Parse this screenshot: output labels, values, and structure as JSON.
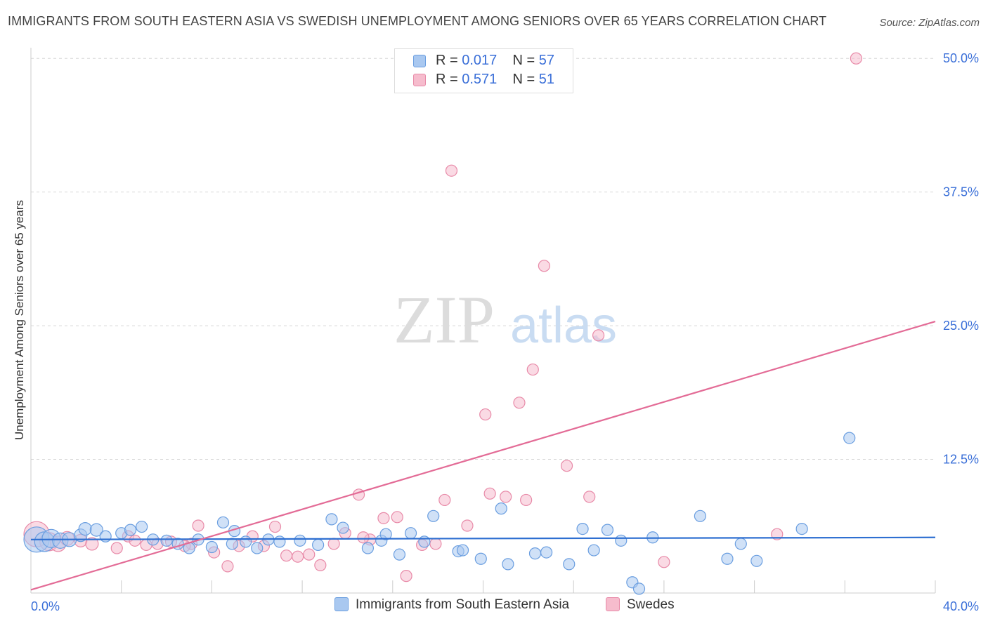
{
  "title": "IMMIGRANTS FROM SOUTH EASTERN ASIA VS SWEDISH UNEMPLOYMENT AMONG SENIORS OVER 65 YEARS CORRELATION CHART",
  "source": "Source: ZipAtlas.com",
  "watermark": {
    "zip": "ZIP",
    "atlas": "atlas"
  },
  "legend": {
    "r_label": "R =",
    "n_label": "N =",
    "series": [
      {
        "r": "0.017",
        "n": "57"
      },
      {
        "r": "0.571",
        "n": "51"
      }
    ]
  },
  "bottom_legend": {
    "series1": "Immigrants from South Eastern Asia",
    "series2": "Swedes"
  },
  "colors": {
    "blue_fill": "#a9c8f0",
    "blue_stroke": "#6a9ee0",
    "blue_line": "#2e6fd1",
    "pink_fill": "#f6bccd",
    "pink_stroke": "#e88aa8",
    "pink_line": "#e36b96",
    "tick_text": "#3a6fd8",
    "grid": "#d6d6d6"
  },
  "chart_data": {
    "type": "scatter",
    "title": "IMMIGRANTS FROM SOUTH EASTERN ASIA VS SWEDISH UNEMPLOYMENT AMONG SENIORS OVER 65 YEARS CORRELATION CHART",
    "xlabel": "",
    "ylabel": "Unemployment Among Seniors over 65 years",
    "xlim": [
      0,
      40
    ],
    "ylim": [
      0,
      51
    ],
    "x_tick_labels": [
      "0.0%",
      "40.0%"
    ],
    "y_ticks": [
      12.5,
      25.0,
      37.5,
      50.0
    ],
    "y_tick_labels": [
      "12.5%",
      "25.0%",
      "37.5%",
      "50.0%"
    ],
    "grid": true,
    "legend_position": "top-center",
    "series": [
      {
        "name": "Immigrants from South Eastern Asia",
        "r": 0.017,
        "n": 57,
        "trend": {
          "x": [
            0,
            40
          ],
          "y": [
            5.0,
            5.2
          ]
        },
        "points": [
          {
            "x": 0.25,
            "y": 5.0,
            "s": 18
          },
          {
            "x": 0.6,
            "y": 4.8,
            "s": 14
          },
          {
            "x": 0.9,
            "y": 5.1,
            "s": 13
          },
          {
            "x": 1.3,
            "y": 4.9,
            "s": 11
          },
          {
            "x": 1.7,
            "y": 5.0,
            "s": 10
          },
          {
            "x": 2.2,
            "y": 5.4,
            "s": 9
          },
          {
            "x": 2.4,
            "y": 6.0,
            "s": 9
          },
          {
            "x": 2.9,
            "y": 5.9,
            "s": 9
          },
          {
            "x": 3.3,
            "y": 5.3,
            "s": 8
          },
          {
            "x": 4.0,
            "y": 5.6,
            "s": 8
          },
          {
            "x": 4.4,
            "y": 5.9,
            "s": 8
          },
          {
            "x": 4.9,
            "y": 6.2,
            "s": 8
          },
          {
            "x": 5.4,
            "y": 5.0,
            "s": 8
          },
          {
            "x": 6.0,
            "y": 4.9,
            "s": 8
          },
          {
            "x": 6.5,
            "y": 4.6,
            "s": 8
          },
          {
            "x": 7.0,
            "y": 4.2,
            "s": 8
          },
          {
            "x": 7.4,
            "y": 5.0,
            "s": 8
          },
          {
            "x": 8.0,
            "y": 4.3,
            "s": 8
          },
          {
            "x": 8.5,
            "y": 6.6,
            "s": 8
          },
          {
            "x": 9.0,
            "y": 5.8,
            "s": 8
          },
          {
            "x": 9.5,
            "y": 4.8,
            "s": 8
          },
          {
            "x": 10.0,
            "y": 4.2,
            "s": 8
          },
          {
            "x": 10.5,
            "y": 5.0,
            "s": 8
          },
          {
            "x": 11.0,
            "y": 4.8,
            "s": 8
          },
          {
            "x": 11.9,
            "y": 4.9,
            "s": 8
          },
          {
            "x": 12.7,
            "y": 4.5,
            "s": 8
          },
          {
            "x": 13.3,
            "y": 6.9,
            "s": 8
          },
          {
            "x": 13.8,
            "y": 6.1,
            "s": 8
          },
          {
            "x": 14.9,
            "y": 4.2,
            "s": 8
          },
          {
            "x": 15.5,
            "y": 4.9,
            "s": 8
          },
          {
            "x": 15.7,
            "y": 5.5,
            "s": 8
          },
          {
            "x": 16.3,
            "y": 3.6,
            "s": 8
          },
          {
            "x": 16.8,
            "y": 5.6,
            "s": 8
          },
          {
            "x": 17.4,
            "y": 4.8,
            "s": 8
          },
          {
            "x": 17.8,
            "y": 7.2,
            "s": 8
          },
          {
            "x": 18.9,
            "y": 3.9,
            "s": 8
          },
          {
            "x": 19.1,
            "y": 4.0,
            "s": 8
          },
          {
            "x": 19.9,
            "y": 3.2,
            "s": 8
          },
          {
            "x": 20.8,
            "y": 7.9,
            "s": 8
          },
          {
            "x": 21.1,
            "y": 2.7,
            "s": 8
          },
          {
            "x": 22.3,
            "y": 3.7,
            "s": 8
          },
          {
            "x": 22.8,
            "y": 3.8,
            "s": 8
          },
          {
            "x": 23.8,
            "y": 2.7,
            "s": 8
          },
          {
            "x": 24.4,
            "y": 6.0,
            "s": 8
          },
          {
            "x": 24.9,
            "y": 4.0,
            "s": 8
          },
          {
            "x": 25.5,
            "y": 5.9,
            "s": 8
          },
          {
            "x": 26.1,
            "y": 4.9,
            "s": 8
          },
          {
            "x": 26.6,
            "y": 1.0,
            "s": 8
          },
          {
            "x": 26.9,
            "y": 0.4,
            "s": 8
          },
          {
            "x": 27.5,
            "y": 5.2,
            "s": 8
          },
          {
            "x": 29.6,
            "y": 7.2,
            "s": 8
          },
          {
            "x": 30.8,
            "y": 3.2,
            "s": 8
          },
          {
            "x": 31.4,
            "y": 4.6,
            "s": 8
          },
          {
            "x": 32.1,
            "y": 3.0,
            "s": 8
          },
          {
            "x": 34.1,
            "y": 6.0,
            "s": 8
          },
          {
            "x": 36.2,
            "y": 14.5,
            "s": 8
          },
          {
            "x": 8.9,
            "y": 4.6,
            "s": 8
          }
        ]
      },
      {
        "name": "Swedes",
        "r": 0.571,
        "n": 51,
        "trend": {
          "x": [
            0,
            40
          ],
          "y": [
            0.3,
            25.4
          ]
        },
        "points": [
          {
            "x": 0.25,
            "y": 5.5,
            "s": 18
          },
          {
            "x": 0.8,
            "y": 4.8,
            "s": 13
          },
          {
            "x": 1.2,
            "y": 4.6,
            "s": 11
          },
          {
            "x": 1.6,
            "y": 5.1,
            "s": 10
          },
          {
            "x": 2.2,
            "y": 4.9,
            "s": 9
          },
          {
            "x": 2.7,
            "y": 4.6,
            "s": 9
          },
          {
            "x": 3.8,
            "y": 4.2,
            "s": 8
          },
          {
            "x": 4.3,
            "y": 5.3,
            "s": 8
          },
          {
            "x": 5.1,
            "y": 4.5,
            "s": 8
          },
          {
            "x": 5.6,
            "y": 4.6,
            "s": 8
          },
          {
            "x": 6.2,
            "y": 4.8,
            "s": 8
          },
          {
            "x": 7.1,
            "y": 4.6,
            "s": 8
          },
          {
            "x": 7.4,
            "y": 6.3,
            "s": 8
          },
          {
            "x": 8.1,
            "y": 3.8,
            "s": 8
          },
          {
            "x": 8.7,
            "y": 2.5,
            "s": 8
          },
          {
            "x": 9.2,
            "y": 4.4,
            "s": 8
          },
          {
            "x": 9.8,
            "y": 5.3,
            "s": 8
          },
          {
            "x": 10.3,
            "y": 4.4,
            "s": 8
          },
          {
            "x": 10.8,
            "y": 6.2,
            "s": 8
          },
          {
            "x": 11.3,
            "y": 3.5,
            "s": 8
          },
          {
            "x": 11.8,
            "y": 3.4,
            "s": 8
          },
          {
            "x": 12.3,
            "y": 3.6,
            "s": 8
          },
          {
            "x": 12.8,
            "y": 2.6,
            "s": 8
          },
          {
            "x": 13.4,
            "y": 4.6,
            "s": 8
          },
          {
            "x": 13.9,
            "y": 5.6,
            "s": 8
          },
          {
            "x": 14.5,
            "y": 9.2,
            "s": 8
          },
          {
            "x": 15.0,
            "y": 5.0,
            "s": 8
          },
          {
            "x": 15.6,
            "y": 7.0,
            "s": 8
          },
          {
            "x": 16.2,
            "y": 7.1,
            "s": 8
          },
          {
            "x": 16.6,
            "y": 1.6,
            "s": 8
          },
          {
            "x": 17.3,
            "y": 4.5,
            "s": 8
          },
          {
            "x": 17.9,
            "y": 4.6,
            "s": 8
          },
          {
            "x": 18.3,
            "y": 8.7,
            "s": 8
          },
          {
            "x": 19.3,
            "y": 6.3,
            "s": 8
          },
          {
            "x": 20.1,
            "y": 16.7,
            "s": 8
          },
          {
            "x": 20.3,
            "y": 9.3,
            "s": 8
          },
          {
            "x": 21.0,
            "y": 9.0,
            "s": 8
          },
          {
            "x": 21.6,
            "y": 17.8,
            "s": 8
          },
          {
            "x": 21.9,
            "y": 8.7,
            "s": 8
          },
          {
            "x": 22.2,
            "y": 20.9,
            "s": 8
          },
          {
            "x": 22.7,
            "y": 30.6,
            "s": 8
          },
          {
            "x": 23.7,
            "y": 11.9,
            "s": 8
          },
          {
            "x": 24.7,
            "y": 9.0,
            "s": 8
          },
          {
            "x": 25.1,
            "y": 24.1,
            "s": 8
          },
          {
            "x": 18.6,
            "y": 39.5,
            "s": 8
          },
          {
            "x": 28.0,
            "y": 2.9,
            "s": 8
          },
          {
            "x": 33.0,
            "y": 5.5,
            "s": 8
          },
          {
            "x": 36.5,
            "y": 50.0,
            "s": 8
          },
          {
            "x": 6.8,
            "y": 4.4,
            "s": 8
          },
          {
            "x": 14.7,
            "y": 5.2,
            "s": 8
          },
          {
            "x": 4.6,
            "y": 4.9,
            "s": 8
          }
        ]
      }
    ]
  }
}
